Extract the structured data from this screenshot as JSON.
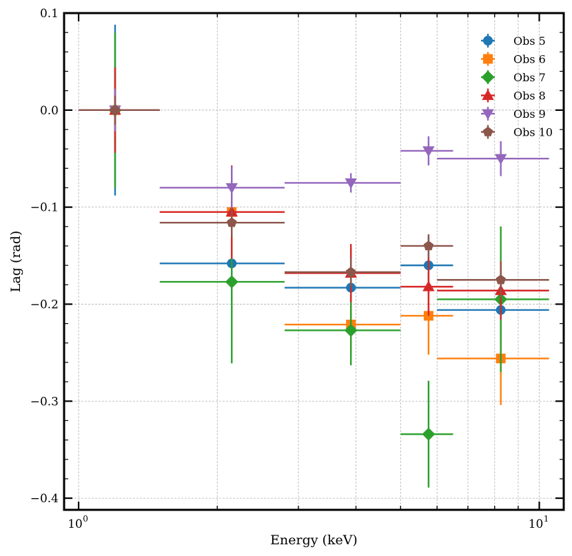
{
  "chart_data": {
    "type": "scatter",
    "title": "",
    "xlabel": "Energy (keV)",
    "ylabel": "Lag (rad)",
    "xscale": "log",
    "xlim": [
      0.93,
      11.3
    ],
    "ylim": [
      -0.412,
      0.1
    ],
    "grid": true,
    "legend_position": "top-right",
    "x_major_ticks": [
      {
        "value": 1,
        "label": "10",
        "exp": "0"
      },
      {
        "value": 10,
        "label": "10",
        "exp": "1"
      }
    ],
    "x_minor_ticks": [
      2,
      3,
      4,
      5,
      6,
      7,
      8,
      9
    ],
    "y_ticks": [
      {
        "value": 0.1,
        "label": "0.1"
      },
      {
        "value": 0.0,
        "label": "0.0"
      },
      {
        "value": -0.1,
        "label": "−0.1"
      },
      {
        "value": -0.2,
        "label": "−0.2"
      },
      {
        "value": -0.3,
        "label": "−0.3"
      },
      {
        "value": -0.4,
        "label": "−0.4"
      }
    ],
    "series": [
      {
        "name": "Obs 5",
        "color": "#1f77b4",
        "marker": "circle",
        "points": [
          {
            "x": 1.2,
            "xlo": 1.0,
            "xhi": 1.5,
            "y": 0.0,
            "yerr": 0.088
          },
          {
            "x": 2.15,
            "xlo": 1.5,
            "xhi": 2.8,
            "y": -0.158,
            "yerr": 0.04
          },
          {
            "x": 3.9,
            "xlo": 2.8,
            "xhi": 5.0,
            "y": -0.183,
            "yerr": 0.04
          },
          {
            "x": 5.75,
            "xlo": 5.0,
            "xhi": 6.5,
            "y": -0.16,
            "yerr": 0.03
          },
          {
            "x": 8.25,
            "xlo": 6.0,
            "xhi": 10.5,
            "y": -0.206,
            "yerr": 0.03
          }
        ]
      },
      {
        "name": "Obs 6",
        "color": "#ff7f0e",
        "marker": "square",
        "points": [
          {
            "x": 1.2,
            "xlo": 1.0,
            "xhi": 1.5,
            "y": 0.0,
            "yerr": 0.03
          },
          {
            "x": 2.15,
            "xlo": 1.5,
            "xhi": 2.8,
            "y": -0.105,
            "yerr": 0.03
          },
          {
            "x": 3.9,
            "xlo": 2.8,
            "xhi": 5.0,
            "y": -0.221,
            "yerr": 0.03
          },
          {
            "x": 5.75,
            "xlo": 5.0,
            "xhi": 6.5,
            "y": -0.212,
            "yerr": 0.04
          },
          {
            "x": 8.25,
            "xlo": 6.0,
            "xhi": 10.5,
            "y": -0.256,
            "yerr": 0.048
          }
        ]
      },
      {
        "name": "Obs 7",
        "color": "#2ca02c",
        "marker": "diamond",
        "points": [
          {
            "x": 1.2,
            "xlo": 1.0,
            "xhi": 1.5,
            "y": 0.0,
            "yerr": 0.08
          },
          {
            "x": 2.15,
            "xlo": 1.5,
            "xhi": 2.8,
            "y": -0.177,
            "yerr": 0.084
          },
          {
            "x": 3.9,
            "xlo": 2.8,
            "xhi": 5.0,
            "y": -0.227,
            "yerr": 0.036
          },
          {
            "x": 5.75,
            "xlo": 5.0,
            "xhi": 6.5,
            "y": -0.334,
            "yerr": 0.055
          },
          {
            "x": 8.25,
            "xlo": 6.0,
            "xhi": 10.5,
            "y": -0.195,
            "yerr": 0.075
          }
        ]
      },
      {
        "name": "Obs 8",
        "color": "#d62728",
        "marker": "triangle-up",
        "points": [
          {
            "x": 1.2,
            "xlo": 1.0,
            "xhi": 1.5,
            "y": 0.0,
            "yerr": 0.044
          },
          {
            "x": 2.15,
            "xlo": 1.5,
            "xhi": 2.8,
            "y": -0.105,
            "yerr": 0.048
          },
          {
            "x": 3.9,
            "xlo": 2.8,
            "xhi": 5.0,
            "y": -0.168,
            "yerr": 0.03
          },
          {
            "x": 5.75,
            "xlo": 5.0,
            "xhi": 6.5,
            "y": -0.182,
            "yerr": 0.03
          },
          {
            "x": 8.25,
            "xlo": 6.0,
            "xhi": 10.5,
            "y": -0.186,
            "yerr": 0.03
          }
        ]
      },
      {
        "name": "Obs 9",
        "color": "#9467bd",
        "marker": "triangle-down",
        "points": [
          {
            "x": 1.2,
            "xlo": 1.0,
            "xhi": 1.5,
            "y": 0.0,
            "yerr": 0.022
          },
          {
            "x": 2.15,
            "xlo": 1.5,
            "xhi": 2.8,
            "y": -0.08,
            "yerr": 0.022
          },
          {
            "x": 3.9,
            "xlo": 2.8,
            "xhi": 5.0,
            "y": -0.075,
            "yerr": 0.01
          },
          {
            "x": 5.75,
            "xlo": 5.0,
            "xhi": 6.5,
            "y": -0.042,
            "yerr": 0.015
          },
          {
            "x": 8.25,
            "xlo": 6.0,
            "xhi": 10.5,
            "y": -0.05,
            "yerr": 0.018
          }
        ]
      },
      {
        "name": "Obs 10",
        "color": "#8c564b",
        "marker": "pentagon",
        "points": [
          {
            "x": 1.2,
            "xlo": 1.0,
            "xhi": 1.5,
            "y": 0.0,
            "yerr": 0.015
          },
          {
            "x": 2.15,
            "xlo": 1.5,
            "xhi": 2.8,
            "y": -0.116,
            "yerr": 0.015
          },
          {
            "x": 3.9,
            "xlo": 2.8,
            "xhi": 5.0,
            "y": -0.167,
            "yerr": 0.015
          },
          {
            "x": 5.75,
            "xlo": 5.0,
            "xhi": 6.5,
            "y": -0.14,
            "yerr": 0.012
          },
          {
            "x": 8.25,
            "xlo": 6.0,
            "xhi": 10.5,
            "y": -0.175,
            "yerr": 0.018
          }
        ]
      }
    ]
  }
}
